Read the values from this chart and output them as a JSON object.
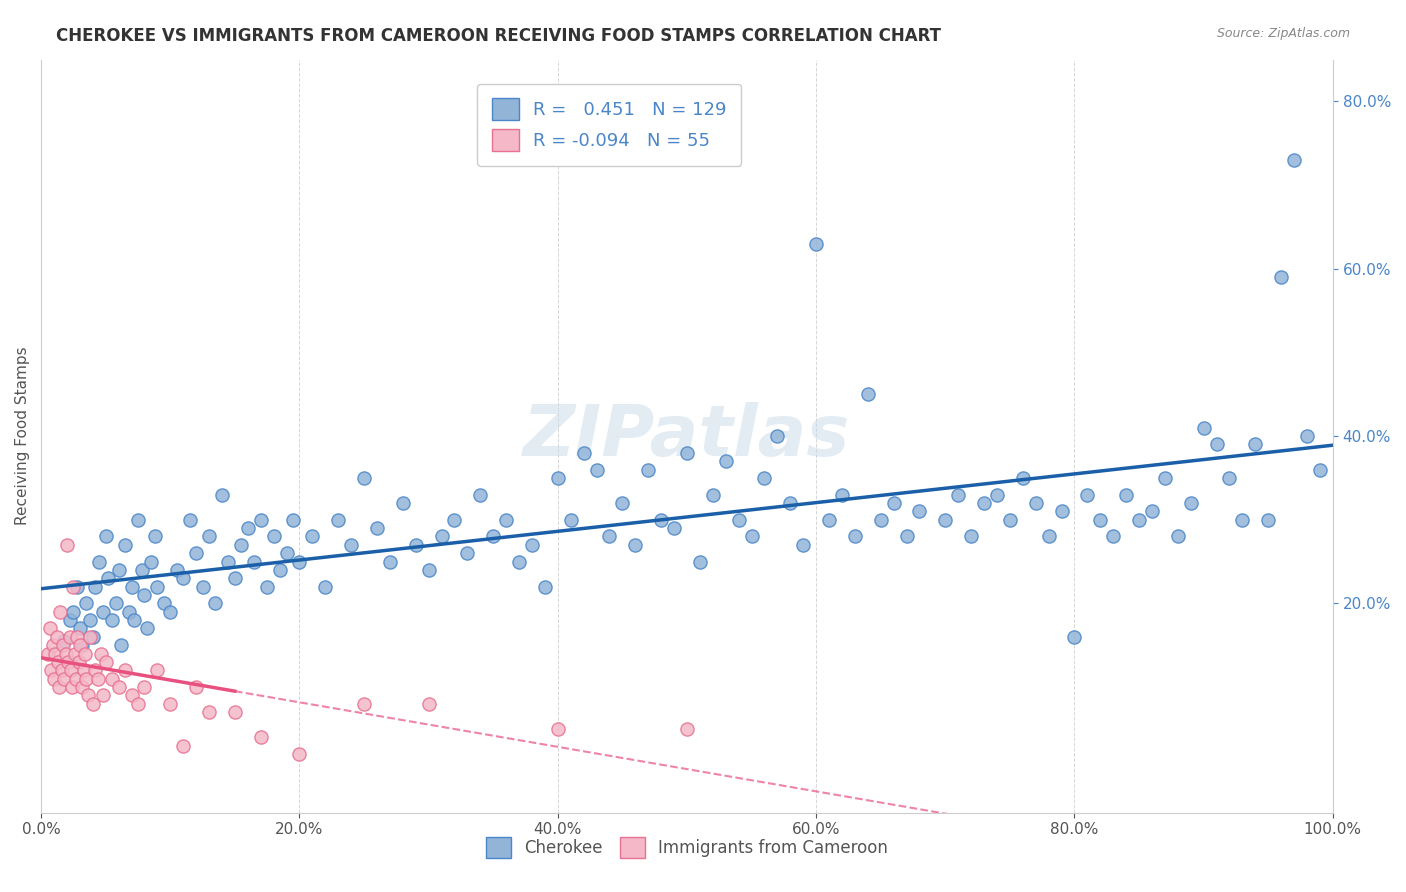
{
  "title": "CHEROKEE VS IMMIGRANTS FROM CAMEROON RECEIVING FOOD STAMPS CORRELATION CHART",
  "source": "Source: ZipAtlas.com",
  "ylabel": "Receiving Food Stamps",
  "xlim": [
    0.0,
    1.0
  ],
  "ylim": [
    -0.05,
    0.85
  ],
  "xticks": [
    0.0,
    0.2,
    0.4,
    0.6,
    0.8,
    1.0
  ],
  "xticklabels": [
    "0.0%",
    "20.0%",
    "40.0%",
    "60.0%",
    "80.0%",
    "100.0%"
  ],
  "right_ytick_labels": [
    "20.0%",
    "40.0%",
    "60.0%",
    "80.0%"
  ],
  "right_ytick_positions": [
    0.2,
    0.4,
    0.6,
    0.8
  ],
  "cherokee_color": "#92b4d7",
  "cherokee_edge_color": "#4a86c8",
  "cameroon_color": "#f4b8c8",
  "cameroon_edge_color": "#e87090",
  "cherokee_line_color": "#1a5fa8",
  "cameroon_line_color": "#e85080",
  "cherokee_R": 0.451,
  "cherokee_N": 129,
  "cameroon_R": -0.094,
  "cameroon_N": 55,
  "watermark": "ZIPatlas",
  "watermark_color": "#c8d8e8",
  "legend_labels": [
    "Cherokee",
    "Immigrants from Cameroon"
  ],
  "cherokee_data": [
    [
      0.018,
      0.155
    ],
    [
      0.022,
      0.18
    ],
    [
      0.025,
      0.19
    ],
    [
      0.028,
      0.22
    ],
    [
      0.03,
      0.17
    ],
    [
      0.032,
      0.15
    ],
    [
      0.035,
      0.2
    ],
    [
      0.038,
      0.18
    ],
    [
      0.04,
      0.16
    ],
    [
      0.042,
      0.22
    ],
    [
      0.045,
      0.25
    ],
    [
      0.048,
      0.19
    ],
    [
      0.05,
      0.28
    ],
    [
      0.052,
      0.23
    ],
    [
      0.055,
      0.18
    ],
    [
      0.058,
      0.2
    ],
    [
      0.06,
      0.24
    ],
    [
      0.062,
      0.15
    ],
    [
      0.065,
      0.27
    ],
    [
      0.068,
      0.19
    ],
    [
      0.07,
      0.22
    ],
    [
      0.072,
      0.18
    ],
    [
      0.075,
      0.3
    ],
    [
      0.078,
      0.24
    ],
    [
      0.08,
      0.21
    ],
    [
      0.082,
      0.17
    ],
    [
      0.085,
      0.25
    ],
    [
      0.088,
      0.28
    ],
    [
      0.09,
      0.22
    ],
    [
      0.095,
      0.2
    ],
    [
      0.1,
      0.19
    ],
    [
      0.105,
      0.24
    ],
    [
      0.11,
      0.23
    ],
    [
      0.115,
      0.3
    ],
    [
      0.12,
      0.26
    ],
    [
      0.125,
      0.22
    ],
    [
      0.13,
      0.28
    ],
    [
      0.135,
      0.2
    ],
    [
      0.14,
      0.33
    ],
    [
      0.145,
      0.25
    ],
    [
      0.15,
      0.23
    ],
    [
      0.155,
      0.27
    ],
    [
      0.16,
      0.29
    ],
    [
      0.165,
      0.25
    ],
    [
      0.17,
      0.3
    ],
    [
      0.175,
      0.22
    ],
    [
      0.18,
      0.28
    ],
    [
      0.185,
      0.24
    ],
    [
      0.19,
      0.26
    ],
    [
      0.195,
      0.3
    ],
    [
      0.2,
      0.25
    ],
    [
      0.21,
      0.28
    ],
    [
      0.22,
      0.22
    ],
    [
      0.23,
      0.3
    ],
    [
      0.24,
      0.27
    ],
    [
      0.25,
      0.35
    ],
    [
      0.26,
      0.29
    ],
    [
      0.27,
      0.25
    ],
    [
      0.28,
      0.32
    ],
    [
      0.29,
      0.27
    ],
    [
      0.3,
      0.24
    ],
    [
      0.31,
      0.28
    ],
    [
      0.32,
      0.3
    ],
    [
      0.33,
      0.26
    ],
    [
      0.34,
      0.33
    ],
    [
      0.35,
      0.28
    ],
    [
      0.36,
      0.3
    ],
    [
      0.37,
      0.25
    ],
    [
      0.38,
      0.27
    ],
    [
      0.39,
      0.22
    ],
    [
      0.4,
      0.35
    ],
    [
      0.41,
      0.3
    ],
    [
      0.42,
      0.38
    ],
    [
      0.43,
      0.36
    ],
    [
      0.44,
      0.28
    ],
    [
      0.45,
      0.32
    ],
    [
      0.46,
      0.27
    ],
    [
      0.47,
      0.36
    ],
    [
      0.48,
      0.3
    ],
    [
      0.49,
      0.29
    ],
    [
      0.5,
      0.38
    ],
    [
      0.51,
      0.25
    ],
    [
      0.52,
      0.33
    ],
    [
      0.53,
      0.37
    ],
    [
      0.54,
      0.3
    ],
    [
      0.55,
      0.28
    ],
    [
      0.56,
      0.35
    ],
    [
      0.57,
      0.4
    ],
    [
      0.58,
      0.32
    ],
    [
      0.59,
      0.27
    ],
    [
      0.6,
      0.63
    ],
    [
      0.61,
      0.3
    ],
    [
      0.62,
      0.33
    ],
    [
      0.63,
      0.28
    ],
    [
      0.64,
      0.45
    ],
    [
      0.65,
      0.3
    ],
    [
      0.66,
      0.32
    ],
    [
      0.67,
      0.28
    ],
    [
      0.68,
      0.31
    ],
    [
      0.7,
      0.3
    ],
    [
      0.71,
      0.33
    ],
    [
      0.72,
      0.28
    ],
    [
      0.73,
      0.32
    ],
    [
      0.74,
      0.33
    ],
    [
      0.75,
      0.3
    ],
    [
      0.76,
      0.35
    ],
    [
      0.77,
      0.32
    ],
    [
      0.78,
      0.28
    ],
    [
      0.79,
      0.31
    ],
    [
      0.8,
      0.16
    ],
    [
      0.81,
      0.33
    ],
    [
      0.82,
      0.3
    ],
    [
      0.83,
      0.28
    ],
    [
      0.84,
      0.33
    ],
    [
      0.85,
      0.3
    ],
    [
      0.86,
      0.31
    ],
    [
      0.87,
      0.35
    ],
    [
      0.88,
      0.28
    ],
    [
      0.89,
      0.32
    ],
    [
      0.9,
      0.41
    ],
    [
      0.91,
      0.39
    ],
    [
      0.92,
      0.35
    ],
    [
      0.93,
      0.3
    ],
    [
      0.94,
      0.39
    ],
    [
      0.95,
      0.3
    ],
    [
      0.96,
      0.59
    ],
    [
      0.97,
      0.73
    ],
    [
      0.98,
      0.4
    ],
    [
      0.99,
      0.36
    ]
  ],
  "cameroon_data": [
    [
      0.005,
      0.14
    ],
    [
      0.007,
      0.17
    ],
    [
      0.008,
      0.12
    ],
    [
      0.009,
      0.15
    ],
    [
      0.01,
      0.11
    ],
    [
      0.011,
      0.14
    ],
    [
      0.012,
      0.16
    ],
    [
      0.013,
      0.13
    ],
    [
      0.014,
      0.1
    ],
    [
      0.015,
      0.19
    ],
    [
      0.016,
      0.12
    ],
    [
      0.017,
      0.15
    ],
    [
      0.018,
      0.11
    ],
    [
      0.019,
      0.14
    ],
    [
      0.02,
      0.27
    ],
    [
      0.021,
      0.13
    ],
    [
      0.022,
      0.16
    ],
    [
      0.023,
      0.12
    ],
    [
      0.024,
      0.1
    ],
    [
      0.025,
      0.22
    ],
    [
      0.026,
      0.14
    ],
    [
      0.027,
      0.11
    ],
    [
      0.028,
      0.16
    ],
    [
      0.029,
      0.13
    ],
    [
      0.03,
      0.15
    ],
    [
      0.032,
      0.1
    ],
    [
      0.033,
      0.12
    ],
    [
      0.034,
      0.14
    ],
    [
      0.035,
      0.11
    ],
    [
      0.036,
      0.09
    ],
    [
      0.038,
      0.16
    ],
    [
      0.04,
      0.08
    ],
    [
      0.042,
      0.12
    ],
    [
      0.044,
      0.11
    ],
    [
      0.046,
      0.14
    ],
    [
      0.048,
      0.09
    ],
    [
      0.05,
      0.13
    ],
    [
      0.055,
      0.11
    ],
    [
      0.06,
      0.1
    ],
    [
      0.065,
      0.12
    ],
    [
      0.07,
      0.09
    ],
    [
      0.075,
      0.08
    ],
    [
      0.08,
      0.1
    ],
    [
      0.09,
      0.12
    ],
    [
      0.1,
      0.08
    ],
    [
      0.11,
      0.03
    ],
    [
      0.12,
      0.1
    ],
    [
      0.13,
      0.07
    ],
    [
      0.15,
      0.07
    ],
    [
      0.17,
      0.04
    ],
    [
      0.2,
      0.02
    ],
    [
      0.25,
      0.08
    ],
    [
      0.3,
      0.08
    ],
    [
      0.4,
      0.05
    ],
    [
      0.5,
      0.05
    ]
  ]
}
